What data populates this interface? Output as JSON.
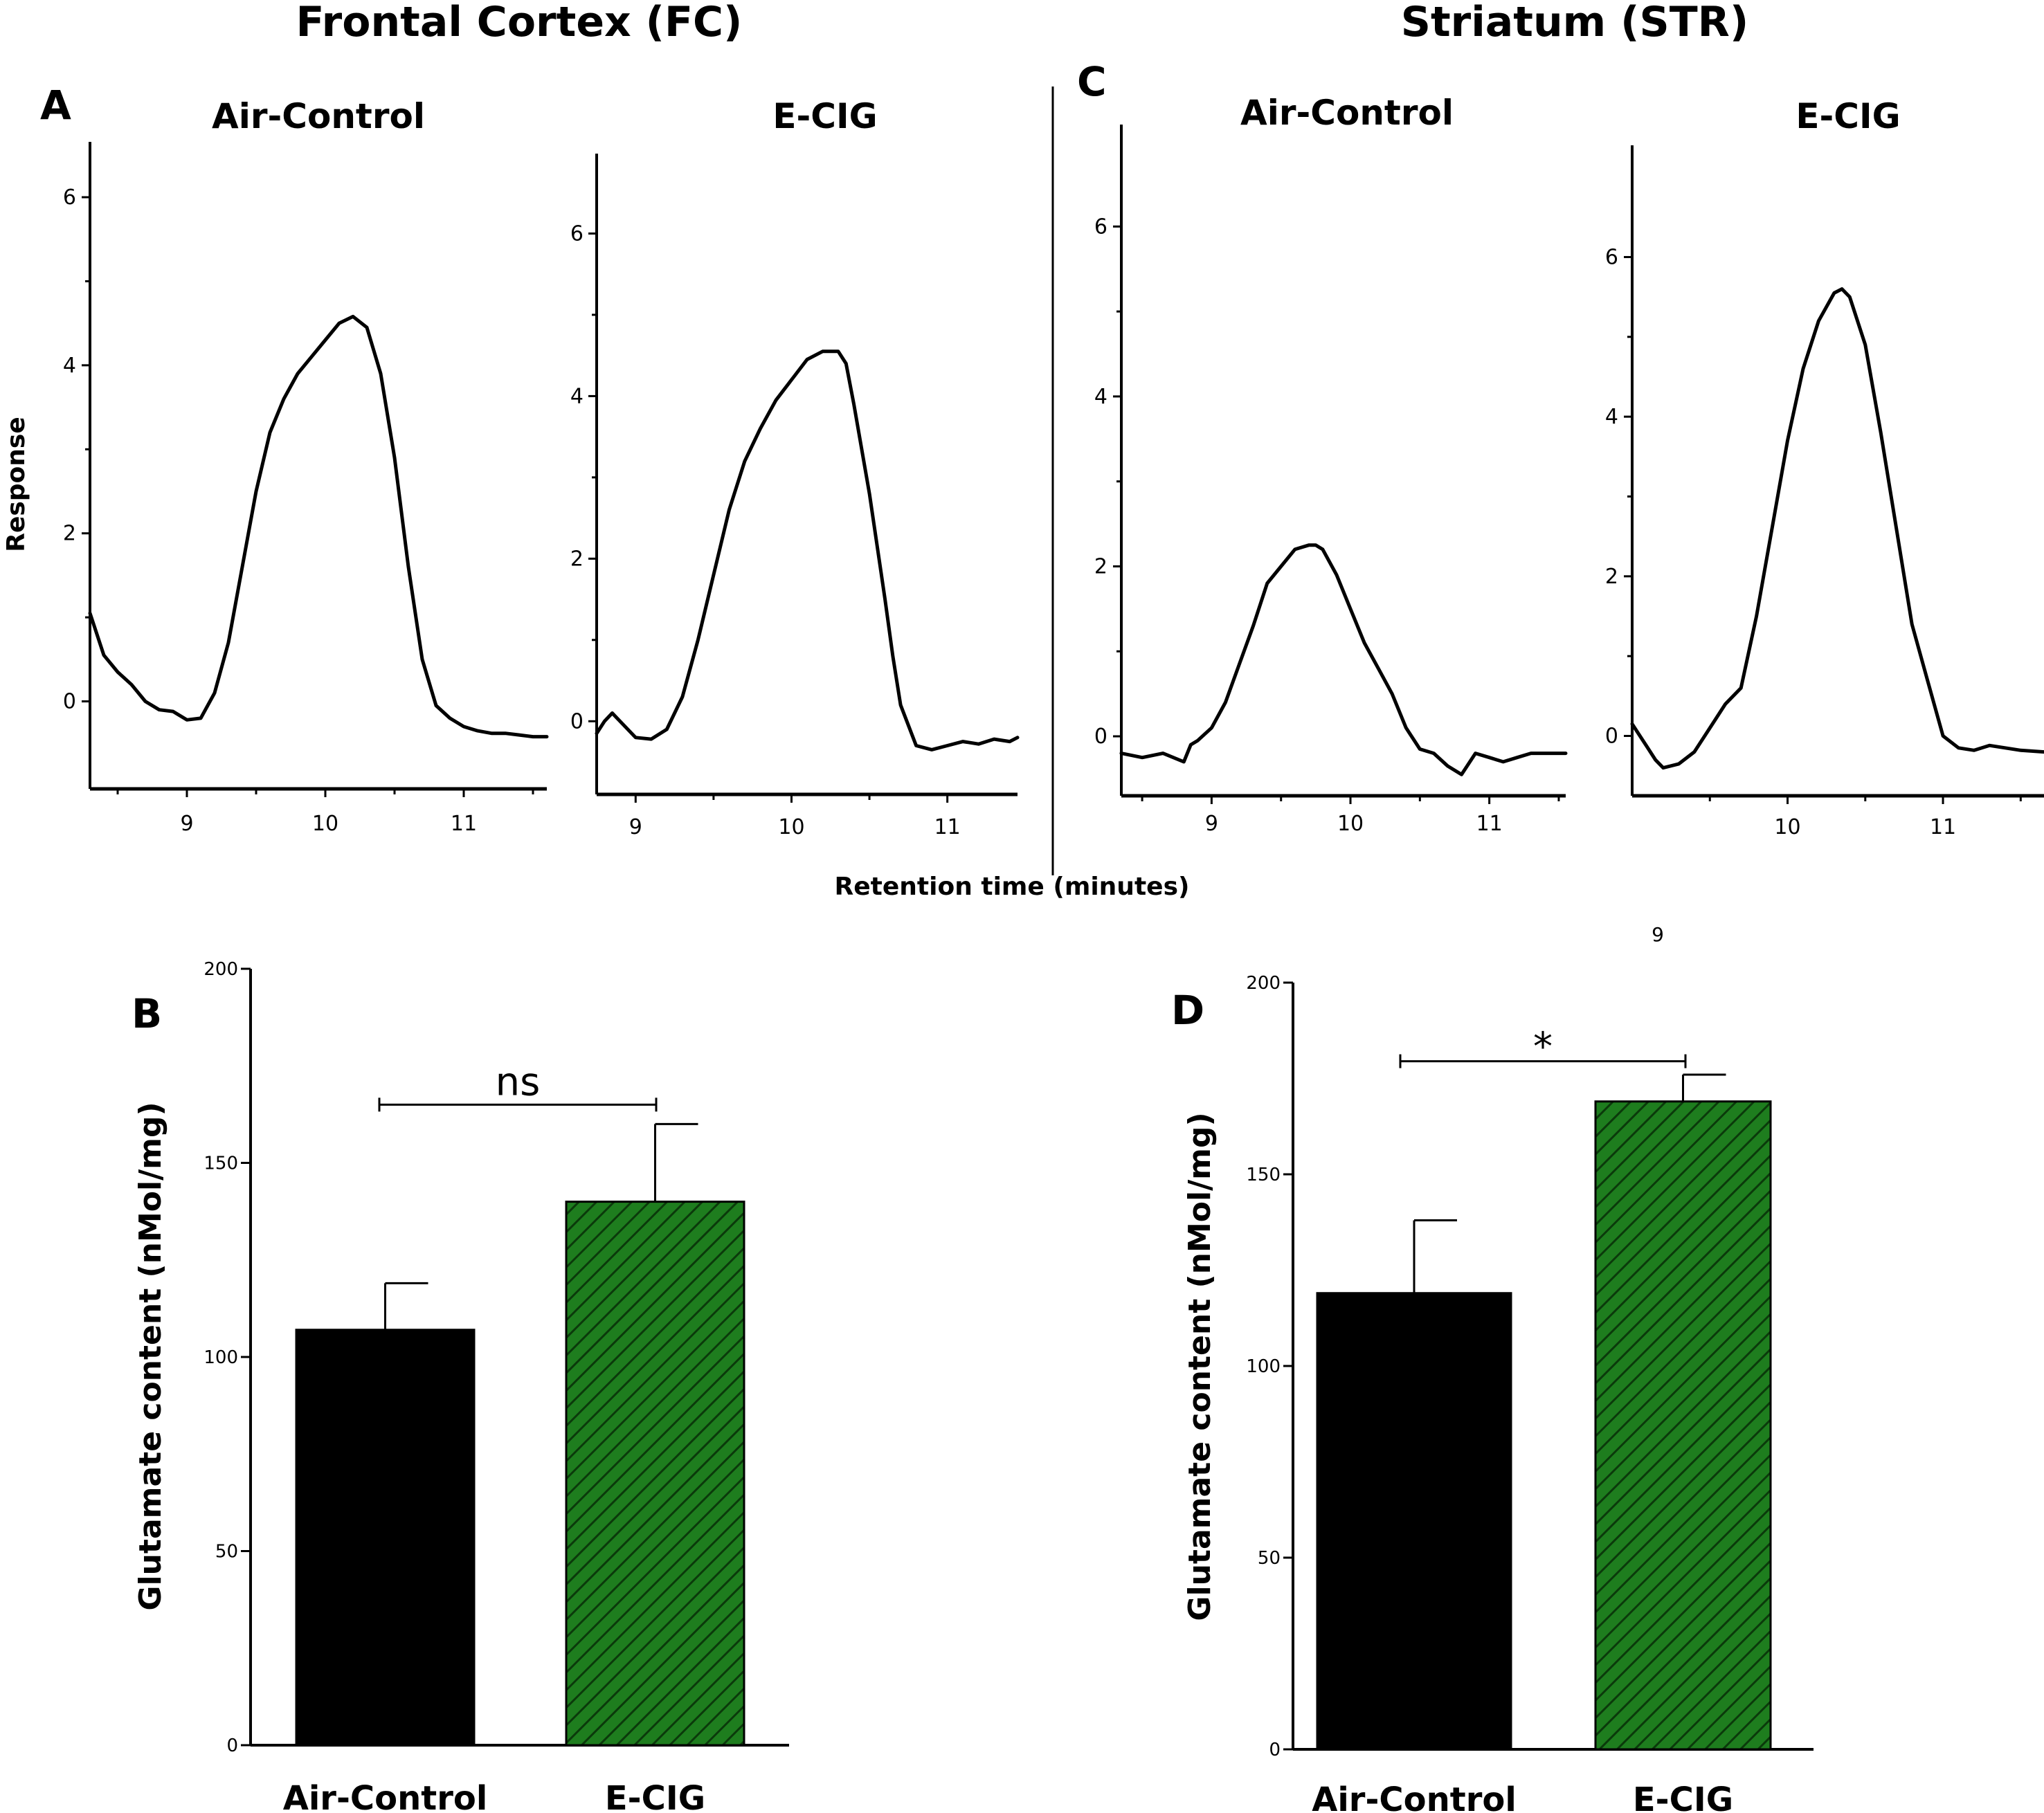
{
  "headers": {
    "fc": "Frontal Cortex (FC)",
    "str": "Striatum (STR)"
  },
  "panel_labels": {
    "a": "A",
    "b": "B",
    "c": "C",
    "d": "D"
  },
  "shared_xlabel": "Retention time (minutes)",
  "stray_label": "9",
  "colors": {
    "ecig_fill": "#1e7d1e",
    "hatch": "#0b3a0b",
    "control_fill": "#000000",
    "axis": "#000000"
  },
  "chart_data": [
    {
      "id": "A_air",
      "type": "line",
      "title": "Air-Control",
      "ylabel": "Response",
      "xlim": [
        8.3,
        11.6
      ],
      "ylim": [
        -1,
        6.7
      ],
      "xticks": [
        9,
        10,
        11
      ],
      "yticks": [
        0,
        2,
        4,
        6
      ],
      "x": [
        8.3,
        8.4,
        8.5,
        8.6,
        8.7,
        8.8,
        8.9,
        9.0,
        9.1,
        9.2,
        9.3,
        9.4,
        9.5,
        9.6,
        9.7,
        9.8,
        9.9,
        10.0,
        10.1,
        10.2,
        10.3,
        10.4,
        10.5,
        10.6,
        10.7,
        10.8,
        10.9,
        11.0,
        11.1,
        11.2,
        11.3,
        11.4,
        11.5,
        11.6
      ],
      "y": [
        1.05,
        0.55,
        0.35,
        0.2,
        0.0,
        -0.1,
        -0.12,
        -0.22,
        -0.2,
        0.1,
        0.7,
        1.6,
        2.5,
        3.2,
        3.6,
        3.9,
        4.1,
        4.3,
        4.5,
        4.58,
        4.45,
        3.9,
        2.9,
        1.6,
        0.5,
        -0.05,
        -0.2,
        -0.3,
        -0.35,
        -0.38,
        -0.38,
        -0.4,
        -0.42,
        -0.42
      ]
    },
    {
      "id": "A_ecig",
      "type": "line",
      "title": "E-CIG",
      "ylabel": "",
      "xlim": [
        8.75,
        11.45
      ],
      "ylim": [
        -0.9,
        7.0
      ],
      "xticks": [
        9,
        10,
        11
      ],
      "yticks": [
        0,
        2,
        4,
        6
      ],
      "x": [
        8.75,
        8.8,
        8.85,
        8.9,
        9.0,
        9.1,
        9.2,
        9.3,
        9.4,
        9.5,
        9.6,
        9.7,
        9.8,
        9.9,
        10.0,
        10.1,
        10.2,
        10.3,
        10.35,
        10.4,
        10.5,
        10.6,
        10.65,
        10.7,
        10.8,
        10.9,
        11.0,
        11.1,
        11.2,
        11.3,
        11.4,
        11.45
      ],
      "y": [
        -0.15,
        0.0,
        0.1,
        0.0,
        -0.2,
        -0.22,
        -0.1,
        0.3,
        1.0,
        1.8,
        2.6,
        3.2,
        3.6,
        3.95,
        4.2,
        4.45,
        4.55,
        4.55,
        4.4,
        3.9,
        2.8,
        1.5,
        0.8,
        0.2,
        -0.3,
        -0.35,
        -0.3,
        -0.25,
        -0.28,
        -0.22,
        -0.25,
        -0.2
      ]
    },
    {
      "id": "C_air",
      "type": "line",
      "title": "Air-Control",
      "ylabel": "",
      "xlim": [
        8.35,
        11.55
      ],
      "ylim": [
        -0.7,
        7.2
      ],
      "xticks": [
        9,
        10,
        11
      ],
      "yticks": [
        0,
        2,
        4,
        6
      ],
      "x": [
        8.35,
        8.5,
        8.65,
        8.8,
        8.85,
        8.9,
        9.0,
        9.1,
        9.2,
        9.3,
        9.4,
        9.5,
        9.6,
        9.7,
        9.75,
        9.8,
        9.9,
        10.0,
        10.1,
        10.2,
        10.3,
        10.4,
        10.5,
        10.6,
        10.7,
        10.8,
        10.9,
        11.0,
        11.1,
        11.2,
        11.3,
        11.4,
        11.55
      ],
      "y": [
        -0.2,
        -0.25,
        -0.2,
        -0.3,
        -0.1,
        -0.05,
        0.1,
        0.4,
        0.85,
        1.3,
        1.8,
        2.0,
        2.2,
        2.25,
        2.25,
        2.2,
        1.9,
        1.5,
        1.1,
        0.8,
        0.5,
        0.1,
        -0.15,
        -0.2,
        -0.35,
        -0.45,
        -0.2,
        -0.25,
        -0.3,
        -0.25,
        -0.2,
        -0.2,
        -0.2
      ]
    },
    {
      "id": "C_ecig",
      "type": "line",
      "title": "E-CIG",
      "ylabel": "",
      "xlim": [
        9.0,
        11.65
      ],
      "ylim": [
        -0.75,
        7.4
      ],
      "xticks": [
        10,
        11
      ],
      "yticks": [
        0,
        2,
        4,
        6
      ],
      "x": [
        9.0,
        9.1,
        9.15,
        9.2,
        9.3,
        9.4,
        9.5,
        9.6,
        9.7,
        9.8,
        9.9,
        10.0,
        10.1,
        10.2,
        10.3,
        10.35,
        10.4,
        10.5,
        10.6,
        10.7,
        10.8,
        10.9,
        11.0,
        11.1,
        11.2,
        11.3,
        11.4,
        11.5,
        11.65
      ],
      "y": [
        0.15,
        -0.15,
        -0.3,
        -0.4,
        -0.35,
        -0.2,
        0.1,
        0.4,
        0.6,
        1.5,
        2.6,
        3.7,
        4.6,
        5.2,
        5.55,
        5.6,
        5.5,
        4.9,
        3.8,
        2.6,
        1.4,
        0.7,
        0.0,
        -0.15,
        -0.18,
        -0.12,
        -0.15,
        -0.18,
        -0.2
      ]
    },
    {
      "id": "B",
      "type": "bar",
      "ylabel": "Glutamate content  (nMol/mg)",
      "ylim": [
        0,
        200
      ],
      "yticks": [
        0,
        50,
        100,
        150,
        200
      ],
      "categories": [
        "Air-Control",
        "E-CIG"
      ],
      "values": [
        107,
        140
      ],
      "errors": [
        12,
        20
      ],
      "significance": "ns"
    },
    {
      "id": "D",
      "type": "bar",
      "ylabel": "Glutamate content  (nMol/mg)",
      "ylim": [
        0,
        200
      ],
      "yticks": [
        0,
        50,
        100,
        150,
        200
      ],
      "categories": [
        "Air-Control",
        "E-CIG"
      ],
      "values": [
        119,
        169
      ],
      "errors": [
        19,
        7
      ],
      "significance": "*"
    }
  ]
}
